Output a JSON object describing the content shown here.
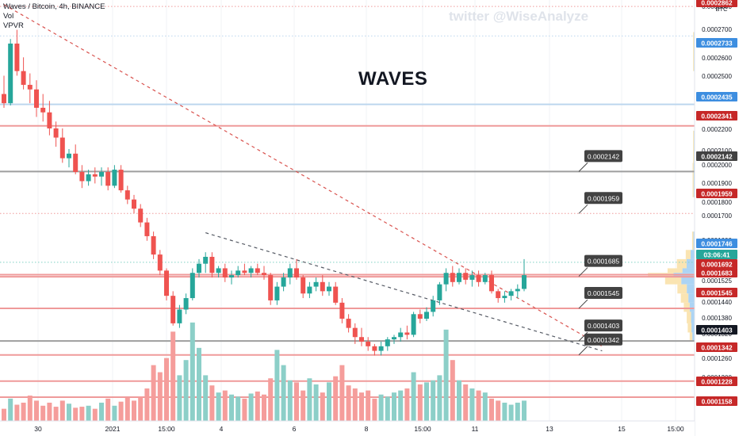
{
  "legend": {
    "symbol": "Waves / Bitcoin, 4h, BINANCE",
    "vol": "Vol",
    "vpvr": "VPVR"
  },
  "watermark": "twitter @WiseAnalyze",
  "title": "WAVES",
  "colors": {
    "up": "#26a69a",
    "down": "#ef5350",
    "volUp": "#8ccfc8",
    "volDown": "#f59d9b",
    "redLine": "#ef9a9a",
    "grayLine": "#9e9e9e",
    "blueLine": "#bcd6ee",
    "price_tag": "#131722",
    "current": "#26a69a"
  },
  "axis": {
    "unit": "BTC",
    "y_ticks": [
      "0.0002800",
      "0.0002700",
      "0.0002600",
      "0.0002500",
      "0.0002400",
      "0.0002300",
      "0.0002200",
      "0.0002100",
      "0.0002000",
      "0.0001900",
      "0.0001800",
      "0.0001700",
      "0.0001600",
      "0.0001525",
      "0.0001440",
      "0.0001380",
      "0.0001320",
      "0.0001260",
      "0.0001200"
    ],
    "x_ticks": [
      "30",
      "2021",
      "15:00",
      "4",
      "6",
      "8",
      "15:00",
      "11",
      "13",
      "15",
      "15:00"
    ]
  },
  "chart_data": {
    "type": "candlestick",
    "timeframe": "4h",
    "ylim": [
      0.00011,
      0.00029
    ],
    "candles": [
      [
        0.000248,
        0.000256,
        0.000242,
        0.000244
      ],
      [
        0.000244,
        0.000272,
        0.000243,
        0.00027
      ],
      [
        0.00027,
        0.000276,
        0.000256,
        0.000258
      ],
      [
        0.000258,
        0.000264,
        0.00025,
        0.000252
      ],
      [
        0.000252,
        0.000257,
        0.000244,
        0.00025
      ],
      [
        0.00025,
        0.000254,
        0.000238,
        0.000242
      ],
      [
        0.000242,
        0.000248,
        0.000236,
        0.00024
      ],
      [
        0.00024,
        0.000245,
        0.00023,
        0.000233
      ],
      [
        0.000233,
        0.000236,
        0.000225,
        0.000229
      ],
      [
        0.000229,
        0.000233,
        0.000218,
        0.00022
      ],
      [
        0.00022,
        0.000224,
        0.000216,
        0.000222
      ],
      [
        0.000222,
        0.000226,
        0.000213,
        0.000214
      ],
      [
        0.000214,
        0.000217,
        0.000207,
        0.00021
      ],
      [
        0.00021,
        0.000215,
        0.000208,
        0.000213
      ],
      [
        0.000213,
        0.000216,
        0.000209,
        0.000212
      ],
      [
        0.000212,
        0.000216,
        0.000208,
        0.000214
      ],
      [
        0.000214,
        0.000216,
        0.000206,
        0.000208
      ],
      [
        0.000208,
        0.000217,
        0.000207,
        0.000215
      ],
      [
        0.000215,
        0.000217,
        0.000205,
        0.000206
      ],
      [
        0.000206,
        0.000208,
        0.0002,
        0.000202
      ],
      [
        0.000202,
        0.000204,
        0.000196,
        0.000198
      ],
      [
        0.000198,
        0.0002,
        0.00019,
        0.000192
      ],
      [
        0.000192,
        0.000194,
        0.000184,
        0.000186
      ],
      [
        0.000186,
        0.000188,
        0.000176,
        0.000178
      ],
      [
        0.000178,
        0.00018,
        0.000169,
        0.000171
      ],
      [
        0.000171,
        0.000172,
        0.000158,
        0.00016
      ],
      [
        0.00016,
        0.000162,
        0.000147,
        0.000148
      ],
      [
        0.000148,
        0.000156,
        0.000146,
        0.000154
      ],
      [
        0.000154,
        0.000161,
        0.000152,
        0.000159
      ],
      [
        0.000159,
        0.000172,
        0.000158,
        0.00017
      ],
      [
        0.00017,
        0.000176,
        0.000168,
        0.000174
      ],
      [
        0.000174,
        0.000179,
        0.00017,
        0.000177
      ],
      [
        0.000177,
        0.000179,
        0.000168,
        0.00017
      ],
      [
        0.00017,
        0.000173,
        0.000168,
        0.000172
      ],
      [
        0.000172,
        0.000174,
        0.000166,
        0.000168
      ],
      [
        0.000168,
        0.000171,
        0.000165,
        0.000169
      ],
      [
        0.000169,
        0.000173,
        0.000168,
        0.000171
      ],
      [
        0.000171,
        0.000174,
        0.000169,
        0.00017
      ],
      [
        0.00017,
        0.000173,
        0.000168,
        0.000172
      ],
      [
        0.000172,
        0.000174,
        0.000169,
        0.00017
      ],
      [
        0.00017,
        0.000173,
        0.000167,
        0.000169
      ],
      [
        0.000169,
        0.00017,
        0.000156,
        0.000158
      ],
      [
        0.000158,
        0.000166,
        0.000156,
        0.000164
      ],
      [
        0.000164,
        0.00017,
        0.000162,
        0.000168
      ],
      [
        0.000168,
        0.000174,
        0.000165,
        0.000172
      ],
      [
        0.000172,
        0.000176,
        0.000167,
        0.000168
      ],
      [
        0.000168,
        0.000169,
        0.000159,
        0.000161
      ],
      [
        0.000161,
        0.000166,
        0.000159,
        0.000164
      ],
      [
        0.000164,
        0.000168,
        0.000162,
        0.000166
      ],
      [
        0.000166,
        0.000169,
        0.00016,
        0.000162
      ],
      [
        0.000162,
        0.000166,
        0.00016,
        0.000164
      ],
      [
        0.000164,
        0.000166,
        0.000156,
        0.000157
      ],
      [
        0.000157,
        0.000159,
        0.000148,
        0.00015
      ],
      [
        0.00015,
        0.000152,
        0.000144,
        0.000146
      ],
      [
        0.000146,
        0.000148,
        0.000139,
        0.000142
      ],
      [
        0.000142,
        0.000146,
        0.000138,
        0.00014
      ],
      [
        0.00014,
        0.000142,
        0.000136,
        0.000138
      ],
      [
        0.000138,
        0.000139,
        0.000134,
        0.000136
      ],
      [
        0.000136,
        0.00014,
        0.000134,
        0.000138
      ],
      [
        0.000138,
        0.000142,
        0.000136,
        0.000141
      ],
      [
        0.000141,
        0.000143,
        0.000139,
        0.000142
      ],
      [
        0.000142,
        0.000146,
        0.00014,
        0.000144
      ],
      [
        0.000144,
        0.000147,
        0.000141,
        0.000143
      ],
      [
        0.000143,
        0.000153,
        0.000142,
        0.000152
      ],
      [
        0.000152,
        0.000154,
        0.000148,
        0.00015
      ],
      [
        0.00015,
        0.000155,
        0.000149,
        0.000153
      ],
      [
        0.000153,
        0.00016,
        0.000151,
        0.000158
      ],
      [
        0.000158,
        0.000166,
        0.000156,
        0.000165
      ],
      [
        0.000165,
        0.000172,
        0.000162,
        0.00017
      ],
      [
        0.00017,
        0.000173,
        0.000164,
        0.000166
      ],
      [
        0.000166,
        0.000172,
        0.000165,
        0.00017
      ],
      [
        0.00017,
        0.000172,
        0.000165,
        0.000167
      ],
      [
        0.000167,
        0.000171,
        0.000164,
        0.000169
      ],
      [
        0.000169,
        0.000171,
        0.000164,
        0.000166
      ],
      [
        0.000166,
        0.00017,
        0.000165,
        0.000169
      ],
      [
        0.000169,
        0.000171,
        0.000161,
        0.000162
      ],
      [
        0.000162,
        0.000163,
        0.000157,
        0.000159
      ],
      [
        0.000159,
        0.000162,
        0.000157,
        0.00016
      ],
      [
        0.00016,
        0.000163,
        0.000158,
        0.000162
      ],
      [
        0.000162,
        0.000165,
        0.000159,
        0.000163
      ],
      [
        0.000163,
        0.000176,
        0.000162,
        0.000169
      ]
    ],
    "volumes": [
      0.12,
      0.22,
      0.16,
      0.18,
      0.25,
      0.2,
      0.15,
      0.18,
      0.14,
      0.2,
      0.17,
      0.13,
      0.14,
      0.15,
      0.12,
      0.18,
      0.22,
      0.15,
      0.19,
      0.23,
      0.2,
      0.24,
      0.32,
      0.55,
      0.48,
      0.62,
      0.88,
      0.45,
      0.6,
      0.97,
      0.72,
      0.45,
      0.35,
      0.28,
      0.3,
      0.26,
      0.24,
      0.22,
      0.27,
      0.29,
      0.26,
      0.42,
      0.7,
      0.55,
      0.4,
      0.38,
      0.3,
      0.42,
      0.36,
      0.28,
      0.38,
      0.44,
      0.55,
      0.35,
      0.32,
      0.28,
      0.3,
      0.22,
      0.26,
      0.24,
      0.28,
      0.3,
      0.32,
      0.48,
      0.36,
      0.38,
      0.4,
      0.45,
      0.9,
      0.6,
      0.4,
      0.36,
      0.32,
      0.3,
      0.28,
      0.22,
      0.2,
      0.18,
      0.16,
      0.18,
      0.2
    ],
    "horizontal_levels": [
      {
        "price": 0.0002862,
        "style": "dotted",
        "color": "red"
      },
      {
        "price": 0.0002733,
        "style": "dotted",
        "color": "blue"
      },
      {
        "price": 0.0002435,
        "style": "solid",
        "color": "blue"
      },
      {
        "price": 0.0002341,
        "style": "solid",
        "color": "red"
      },
      {
        "price": 0.0002142,
        "style": "solid",
        "color": "gray"
      },
      {
        "price": 0.0001959,
        "style": "dotted",
        "color": "red"
      },
      {
        "price": 0.0001746,
        "style": "dotted",
        "color": "teal"
      },
      {
        "price": 0.0001692,
        "style": "solid",
        "color": "red"
      },
      {
        "price": 0.0001683,
        "style": "solid",
        "color": "red"
      },
      {
        "price": 0.0001545,
        "style": "solid",
        "color": "red"
      },
      {
        "price": 0.0001403,
        "style": "solid",
        "color": "gray"
      },
      {
        "price": 0.0001342,
        "style": "solid",
        "color": "red"
      },
      {
        "price": 0.0001228,
        "style": "solid",
        "color": "red"
      },
      {
        "price": 0.0001158,
        "style": "solid",
        "color": "red"
      }
    ],
    "right_tags": [
      {
        "label": "0.0002862",
        "color": "#c62828"
      },
      {
        "label": "0.0002733",
        "color": "#3d8ee0"
      },
      {
        "label": "0.0002435",
        "color": "#3d8ee0"
      },
      {
        "label": "0.0002341",
        "color": "#c62828"
      },
      {
        "label": "0.0002142",
        "color": "#424242"
      },
      {
        "label": "0.0001959",
        "color": "#c62828"
      },
      {
        "label": "0.0001746",
        "color": "#3d8ee0"
      },
      {
        "label": "03:06:41",
        "color": "#26a69a"
      },
      {
        "label": "0.0001692",
        "color": "#c62828"
      },
      {
        "label": "0.0001683",
        "color": "#c62828"
      },
      {
        "label": "0.0001545",
        "color": "#c62828"
      },
      {
        "label": "0.0001403",
        "color": "#131722"
      },
      {
        "label": "0.0001342",
        "color": "#c62828"
      },
      {
        "label": "0.0001228",
        "color": "#c62828"
      },
      {
        "label": "0.0001158",
        "color": "#c62828"
      }
    ],
    "callouts": [
      {
        "label": "0.0002142",
        "price": 0.0002142
      },
      {
        "label": "0.0001959",
        "price": 0.0001959
      },
      {
        "label": "0.0001685",
        "price": 0.0001685
      },
      {
        "label": "0.0001545",
        "price": 0.0001545
      },
      {
        "label": "0.0001403",
        "price": 0.0001403
      },
      {
        "label": "0.0001342",
        "price": 0.0001342
      }
    ],
    "trendlines": [
      {
        "from": {
          "bar": 0,
          "price": 0.000287
        },
        "to": {
          "bar": 92,
          "price": 0.000138
        },
        "color": "red",
        "style": "dashed"
      },
      {
        "from": {
          "bar": 31,
          "price": 0.0001875
        },
        "to": {
          "bar": 92,
          "price": 0.000136
        },
        "color": "gray",
        "style": "dashed"
      }
    ]
  }
}
